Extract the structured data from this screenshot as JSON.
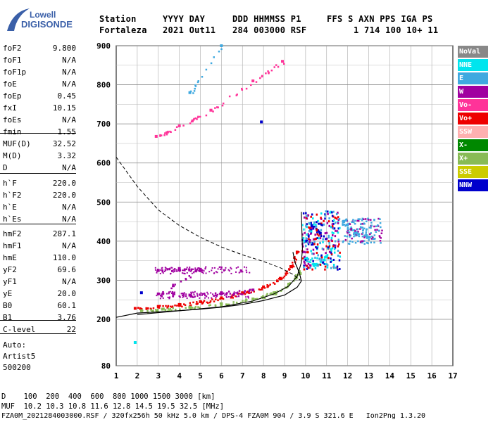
{
  "logo": {
    "line1": "Lowell",
    "line2": "DIGISONDE"
  },
  "header": {
    "labels": [
      "Station",
      "YYYY DAY",
      "DDD HHMMSS P1",
      "FFS S AXN PPS IGA PS"
    ],
    "values": [
      "Fortaleza",
      "2021 Out11",
      "284 003000 RSF",
      "1 714 100 10+ 11"
    ]
  },
  "params": [
    {
      "k": "foF2",
      "v": "9.800"
    },
    {
      "k": "foF1",
      "v": "N/A"
    },
    {
      "k": "foF1p",
      "v": "N/A"
    },
    {
      "k": "foE",
      "v": "N/A"
    },
    {
      "k": "foEp",
      "v": "0.45"
    },
    {
      "k": "fxI",
      "v": "10.15"
    },
    {
      "k": "foEs",
      "v": "N/A"
    },
    {
      "k": "fmin",
      "v": "1.55"
    },
    {
      "k": "MUF(D)",
      "v": "32.52"
    },
    {
      "k": "M(D)",
      "v": "3.32"
    },
    {
      "k": "D",
      "v": "N/A"
    },
    {
      "k": "h`F",
      "v": "220.0"
    },
    {
      "k": "h`F2",
      "v": "220.0"
    },
    {
      "k": "h`E",
      "v": "N/A"
    },
    {
      "k": "h`Es",
      "v": "N/A"
    },
    {
      "k": "hmF2",
      "v": "287.1"
    },
    {
      "k": "hmF1",
      "v": "N/A"
    },
    {
      "k": "hmE",
      "v": "110.0"
    },
    {
      "k": "yF2",
      "v": "69.6"
    },
    {
      "k": "yF1",
      "v": "N/A"
    },
    {
      "k": "yE",
      "v": "20.0"
    },
    {
      "k": "B0",
      "v": "60.1"
    },
    {
      "k": "B1",
      "v": "3.76"
    },
    {
      "k": "C-level",
      "v": "22"
    }
  ],
  "auto": [
    "Auto:",
    "Artist5",
    "500200"
  ],
  "legend": [
    {
      "label": "NoVal",
      "color": "#888888"
    },
    {
      "label": "NNE",
      "color": "#00e5ee"
    },
    {
      "label": "E",
      "color": "#3fa9e0"
    },
    {
      "label": "W",
      "color": "#a000a0"
    },
    {
      "label": "Vo-",
      "color": "#ff3399"
    },
    {
      "label": "Vo+",
      "color": "#ee0000"
    },
    {
      "label": "SSW",
      "color": "#ffb0b0"
    },
    {
      "label": "X-",
      "color": "#008800"
    },
    {
      "label": "X+",
      "color": "#88bb55"
    },
    {
      "label": "SSE",
      "color": "#cccc00"
    },
    {
      "label": "NNW",
      "color": "#0000cc"
    }
  ],
  "footer": {
    "line1": "D    100  200  400  600  800 1000 1500 3000 [km]",
    "line2": "MUF  10.2 10.3 10.8 11.6 12.8 14.5 19.5 32.5 [MHz]",
    "line3": "FZA0M_2021284003000.RSF / 320fx256h 50 kHz 5.0 km / DPS-4 FZA0M 904 / 3.9 S 321.6 E   Ion2Png 1.3.20"
  },
  "chart_data": {
    "type": "scatter",
    "x_ticks": [
      "1",
      "2",
      "3",
      "4",
      "5",
      "6",
      "7",
      "8",
      "9",
      "10",
      "11",
      "12",
      "13",
      "14",
      "15",
      "16",
      "17"
    ],
    "y_ticks": [
      "80",
      "200",
      "300",
      "400",
      "500",
      "600",
      "700",
      "800",
      "900"
    ],
    "xlim": [
      1,
      17
    ],
    "ylim": [
      80,
      900
    ],
    "grid": true,
    "legend_position": "right",
    "series": [
      {
        "name": "Vo+",
        "values": [
          [
            1.9,
            228
          ],
          [
            3,
            233
          ],
          [
            4,
            238
          ],
          [
            5,
            245
          ],
          [
            6,
            255
          ],
          [
            7,
            268
          ],
          [
            8,
            283
          ],
          [
            8.8,
            305
          ],
          [
            9.3,
            335
          ],
          [
            9.6,
            372
          ]
        ]
      },
      {
        "name": "X+",
        "values": [
          [
            2.2,
            222
          ],
          [
            3.2,
            226
          ],
          [
            4.5,
            231
          ],
          [
            6,
            240
          ],
          [
            7.5,
            252
          ],
          [
            8.5,
            268
          ],
          [
            9.2,
            290
          ],
          [
            9.7,
            322
          ]
        ]
      },
      {
        "name": "W",
        "values": [
          [
            3,
            325
          ],
          [
            4,
            330
          ],
          [
            5,
            328
          ],
          [
            3,
            265
          ],
          [
            4.5,
            262
          ],
          [
            6,
            268
          ],
          [
            7.5,
            275
          ]
        ]
      },
      {
        "name": "NNW",
        "values": [
          [
            2.2,
            268
          ],
          [
            10,
            400
          ],
          [
            10.3,
            440
          ],
          [
            10.7,
            420
          ],
          [
            7.9,
            705
          ]
        ]
      },
      {
        "name": "E",
        "values": [
          [
            11.8,
            450
          ],
          [
            12.4,
            420
          ],
          [
            13,
            410
          ],
          [
            4.5,
            780
          ],
          [
            6,
            900
          ]
        ]
      },
      {
        "name": "NNE",
        "values": [
          [
            10,
            355
          ],
          [
            10.5,
            340
          ],
          [
            11,
            360
          ],
          [
            1.9,
            140
          ]
        ]
      },
      {
        "name": "Vo-",
        "values": [
          [
            2.9,
            668
          ],
          [
            4,
            695
          ],
          [
            5.5,
            735
          ],
          [
            7.5,
            810
          ],
          [
            8.9,
            860
          ]
        ]
      }
    ]
  }
}
